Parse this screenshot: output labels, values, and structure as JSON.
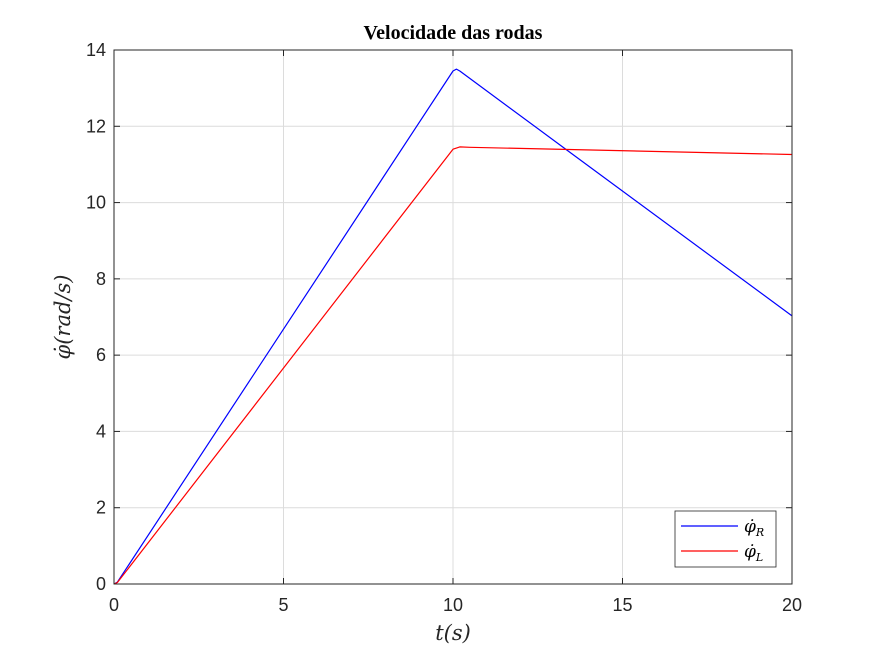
{
  "chart_data": {
    "type": "line",
    "title": "Velocidade das rodas",
    "xlabel": "t(s)",
    "ylabel": "φ̇(rad/s)",
    "xlim": [
      0,
      20
    ],
    "ylim": [
      0,
      14
    ],
    "x_ticks": [
      0,
      5,
      10,
      15,
      20
    ],
    "y_ticks": [
      0,
      2,
      4,
      6,
      8,
      10,
      12,
      14
    ],
    "grid": true,
    "legend_position": "bottom-right",
    "series": [
      {
        "name": "φ̇R",
        "legend_symbol": "φ̇",
        "legend_subscript": "R",
        "color": "#0000ff",
        "points": [
          [
            0,
            0
          ],
          [
            0.1,
            0.05
          ],
          [
            10.0,
            13.45
          ],
          [
            10.1,
            13.5
          ],
          [
            10.2,
            13.45
          ],
          [
            13.4,
            11.35
          ],
          [
            20,
            7.03
          ]
        ]
      },
      {
        "name": "φ̇L",
        "legend_symbol": "φ̇",
        "legend_subscript": "L",
        "color": "#ff0000",
        "points": [
          [
            0,
            0
          ],
          [
            0.1,
            0.04
          ],
          [
            10.0,
            11.4
          ],
          [
            10.2,
            11.46
          ],
          [
            10.5,
            11.45
          ],
          [
            20,
            11.26
          ]
        ]
      }
    ]
  }
}
